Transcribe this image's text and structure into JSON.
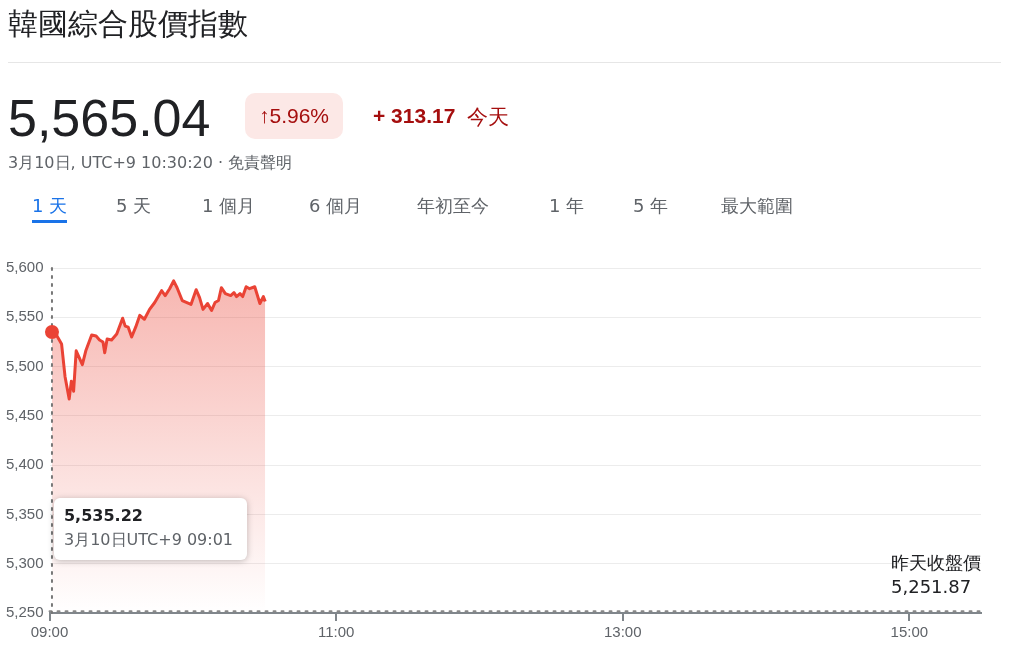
{
  "chart_data": {
    "type": "area",
    "title": "韓國綜合股價指數",
    "subtitle": "5,565.04",
    "annotations": [
      "↑5.96%",
      "+ 313.17",
      "今天",
      "3月10日, UTC+9 10:30:20 · 免責聲明",
      "1 天",
      "5 天",
      "1 個月",
      "6 個月",
      "年初至今",
      "1 年",
      "5 年",
      "最大範圍",
      "5,535.22\n3月10日UTC+9 09:01"
    ],
    "x": [
      9.017,
      9.048,
      9.084,
      9.108,
      9.137,
      9.152,
      9.168,
      9.186,
      9.229,
      9.253,
      9.294,
      9.325,
      9.349,
      9.373,
      9.385,
      9.402,
      9.433,
      9.469,
      9.51,
      9.528,
      9.549,
      9.573,
      9.601,
      9.63,
      9.662,
      9.698,
      9.734,
      9.782,
      9.807,
      9.838,
      9.866,
      9.89,
      9.926,
      9.987,
      10.023,
      10.047,
      10.071,
      10.103,
      10.131,
      10.155,
      10.179,
      10.199,
      10.227,
      10.264,
      10.287,
      10.305,
      10.329,
      10.348,
      10.372,
      10.396,
      10.432,
      10.468,
      10.492,
      10.505
    ],
    "series": [
      {
        "color": "#ea4335",
        "values": [
          5535,
          5532,
          5523,
          5490,
          5467,
          5485,
          5475,
          5516,
          5502,
          5516,
          5532,
          5531,
          5527,
          5525,
          5514,
          5528,
          5527,
          5533,
          5549,
          5541,
          5540,
          5530,
          5540,
          5552,
          5548,
          5558,
          5565,
          5577,
          5572,
          5579,
          5587,
          5580,
          5567,
          5563,
          5578,
          5570,
          5558,
          5564,
          5557,
          5565,
          5567,
          5580,
          5574,
          5572,
          5575,
          5571,
          5574,
          5571,
          5581,
          5579,
          5581,
          5564,
          5571,
          5566
        ]
      }
    ],
    "xlim": [
      9,
      15.5
    ],
    "xticks": [
      {
        "value": 9,
        "label": "09:00"
      },
      {
        "value": 11,
        "label": "11:00"
      },
      {
        "value": 13,
        "label": "13:00"
      },
      {
        "value": 15,
        "label": "15:00"
      }
    ],
    "ylim": [
      5250,
      5600
    ],
    "yticks": [
      {
        "value": 5250,
        "label": "5,250"
      },
      {
        "value": 5300,
        "label": "5,300"
      },
      {
        "value": 5350,
        "label": "5,350"
      },
      {
        "value": 5400,
        "label": "5,400"
      },
      {
        "value": 5450,
        "label": "5,450"
      },
      {
        "value": 5500,
        "label": "5,500"
      },
      {
        "value": 5550,
        "label": "5,550"
      },
      {
        "value": 5600,
        "label": "5,600"
      }
    ],
    "ref_lines": [
      {
        "axis": "y",
        "value": 5251.87,
        "label": "昨天收盤價5,251.87",
        "line_style": "dotted",
        "color": "#888888"
      },
      {
        "axis": "x",
        "value": 9.017,
        "line_style": "dotted",
        "color": "#777777"
      }
    ],
    "grid": "y",
    "legend": false,
    "marker": "none",
    "line_style": "solid"
  }
}
